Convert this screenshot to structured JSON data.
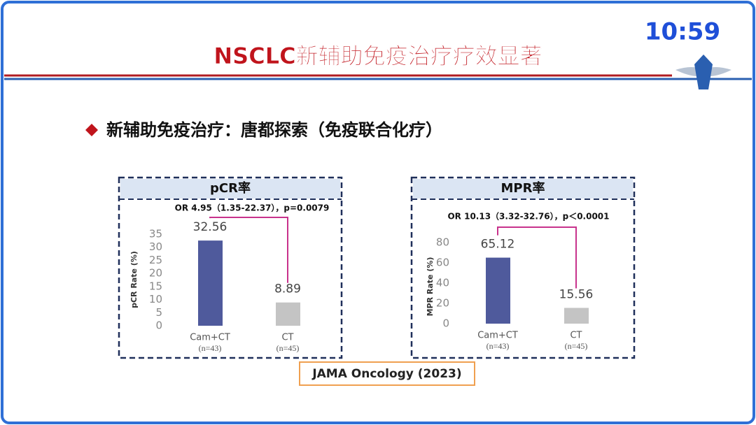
{
  "header": {
    "title": "NSCLC新辅助免疫治疗疗效显著",
    "clock": "10:59"
  },
  "subtitle": "新辅助免疫治疗：唐都探索（免疫联合化疗）",
  "citation": "JAMA Oncology (2023)",
  "chart_data": [
    {
      "type": "bar",
      "title": "pCR率",
      "annotation": "OR 4.95（1.35-22.37），p=0.0079",
      "y_label": "pCR Rate (%)",
      "categories": [
        "Cam+CT",
        "CT"
      ],
      "sample_sizes": [
        "(n=43)",
        "(n=45)"
      ],
      "values": [
        32.56,
        8.89
      ],
      "colors": [
        "#4f5a9c",
        "#c4c4c4"
      ],
      "ylim": [
        0,
        35
      ],
      "yticks": [
        0,
        5,
        10,
        15,
        20,
        25,
        30,
        35
      ],
      "grid": false
    },
    {
      "type": "bar",
      "title": "MPR率",
      "annotation": "OR 10.13（3.32-32.76），p＜0.0001",
      "y_label": "MPR Rate (%)",
      "categories": [
        "Cam+CT",
        "CT"
      ],
      "sample_sizes": [
        "(n=43)",
        "(n=45)"
      ],
      "values": [
        65.12,
        15.56
      ],
      "colors": [
        "#4f5a9c",
        "#c4c4c4"
      ],
      "ylim": [
        0,
        80
      ],
      "yticks": [
        0,
        20,
        40,
        60,
        80
      ],
      "grid": false
    }
  ]
}
